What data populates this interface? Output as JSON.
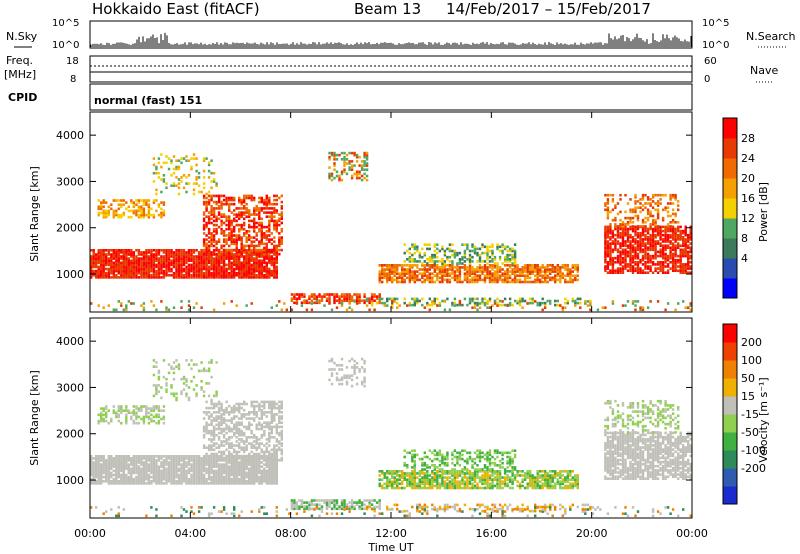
{
  "header": {
    "title": "Hokkaido East (fitACF)",
    "beam": "Beam 13",
    "dates": "14/Feb/2017 – 15/Feb/2017"
  },
  "strips": {
    "nsky": {
      "label": "N.Sky",
      "ticks": [
        "10^5",
        "10^0"
      ],
      "right_ticks": [
        "10^5",
        "10^0"
      ],
      "right_label": "N.Search"
    },
    "freq": {
      "label": "Freq.",
      "unit": "[MHz]",
      "ticks": [
        "18",
        "8"
      ],
      "right_ticks": [
        "60",
        "0"
      ],
      "right_label": "Nave"
    },
    "cpid": {
      "label": "CPID",
      "mode_text": "normal (fast) 151"
    }
  },
  "chart_data": [
    {
      "type": "heatmap",
      "name": "power",
      "ylabel": "Slant Range [km]",
      "yticks": [
        1000,
        2000,
        3000,
        4000
      ],
      "ylim": [
        180,
        4500
      ],
      "xlabel": "Time UT",
      "xticks": [
        "00:00",
        "04:00",
        "08:00",
        "12:00",
        "16:00",
        "20:00",
        "00:00"
      ],
      "xlim_hours": [
        0,
        24
      ],
      "colorbar": {
        "label": "Power [dB]",
        "ticks": [
          "28",
          "24",
          "20",
          "16",
          "12",
          "8",
          "4"
        ],
        "colors": [
          "#0000ff",
          "#2a4cb0",
          "#3b7a5c",
          "#4ea862",
          "#f5d000",
          "#f5a000",
          "#f06a00",
          "#e83a00",
          "#ff0000"
        ]
      }
    },
    {
      "type": "heatmap",
      "name": "velocity",
      "ylabel": "Slant Range [km]",
      "yticks": [
        1000,
        2000,
        3000,
        4000
      ],
      "ylim": [
        180,
        4500
      ],
      "xlabel": "Time UT",
      "xticks": [
        "00:00",
        "04:00",
        "08:00",
        "12:00",
        "16:00",
        "20:00",
        "00:00"
      ],
      "xlim_hours": [
        0,
        24
      ],
      "colorbar": {
        "label": "Velocity [m s⁻¹]",
        "ticks": [
          "200",
          "100",
          "50",
          "15",
          "-15",
          "-50",
          "-100",
          "-200"
        ],
        "colors": [
          "#1a2bd0",
          "#2f5cb0",
          "#2f8a5a",
          "#40b040",
          "#90d050",
          "#c0c0b8",
          "#f0b000",
          "#f08000",
          "#f04000",
          "#ff0000"
        ]
      }
    }
  ],
  "xaxis": {
    "title": "Time UT"
  }
}
